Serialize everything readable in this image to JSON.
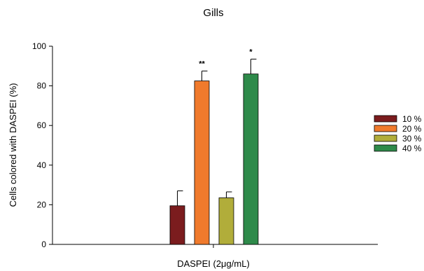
{
  "chart_data": {
    "type": "bar",
    "title": "Gills",
    "xlabel": "DASPEI (2μg/mL)",
    "ylabel": "Cells colored with DASPEI (%)",
    "ylim": [
      0,
      100
    ],
    "yticks": [
      "0",
      "20",
      "40",
      "60",
      "80",
      "100"
    ],
    "grid": false,
    "legend_position": "right",
    "series": [
      {
        "name": "10 %",
        "value": 19.5,
        "error": 7.5,
        "color": "#7b1c1e",
        "annotation": ""
      },
      {
        "name": "20 %",
        "value": 82.5,
        "error": 5,
        "color": "#f07a2c",
        "annotation": "**"
      },
      {
        "name": "30 %",
        "value": 23.5,
        "error": 3,
        "color": "#b1ad3a",
        "annotation": ""
      },
      {
        "name": "40 %",
        "value": 86,
        "error": 7.5,
        "color": "#2e8a4a",
        "annotation": "*"
      }
    ]
  }
}
